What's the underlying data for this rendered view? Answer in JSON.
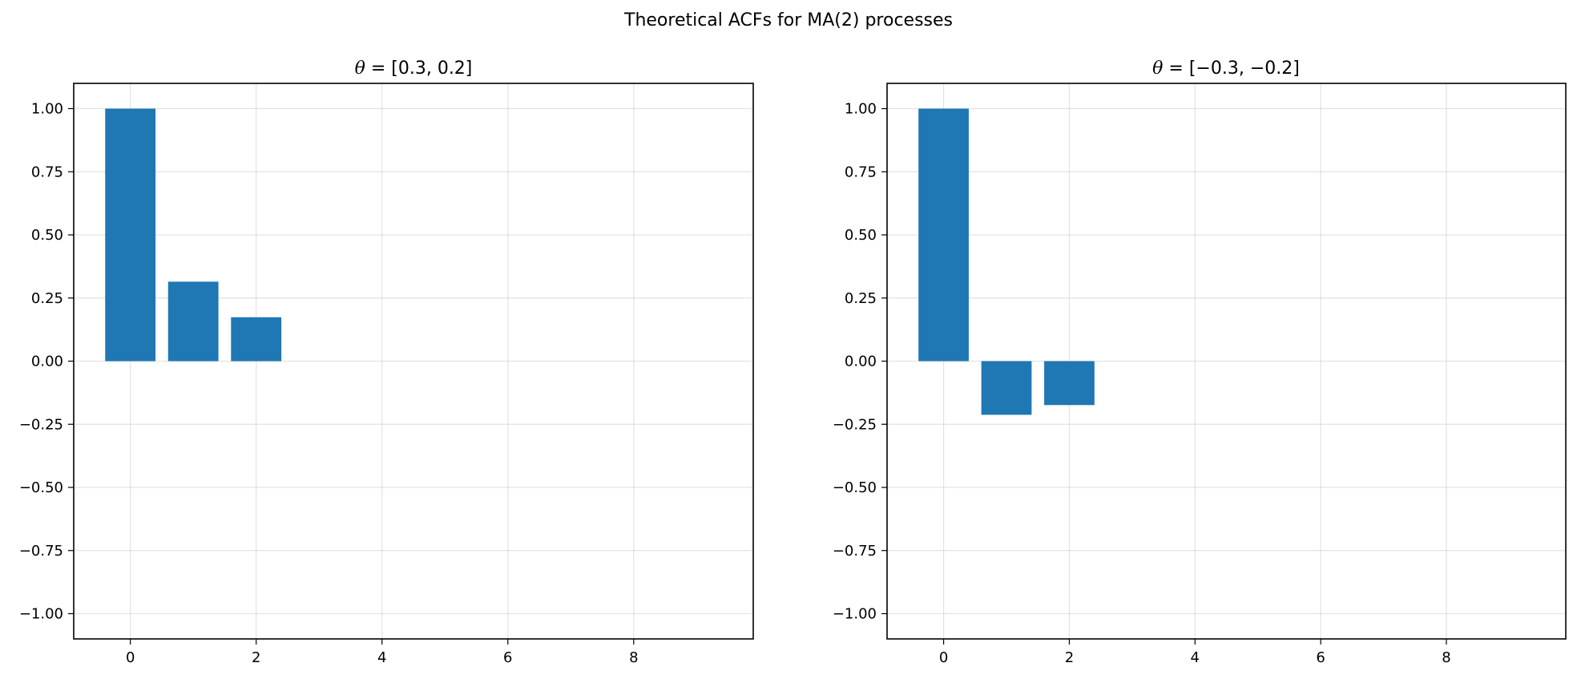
{
  "figure": {
    "suptitle": "Theoretical ACFs for MA(2) processes"
  },
  "chart_data": [
    {
      "type": "bar",
      "title_symbol": "θ",
      "title_rest": " = [0.3, 0.2]",
      "xlabel": "",
      "ylabel": "",
      "x": [
        0,
        1,
        2
      ],
      "values": [
        1.0,
        0.3147,
        0.1739
      ],
      "xlim": [
        -0.9,
        9.9
      ],
      "ylim": [
        -1.1,
        1.1
      ],
      "xticks": [
        "0",
        "2",
        "4",
        "6",
        "8"
      ],
      "yticks": [
        "−1.00",
        "−0.75",
        "−0.50",
        "−0.25",
        "0.00",
        "0.25",
        "0.50",
        "0.75",
        "1.00"
      ],
      "grid": true,
      "bar_color": "#1f77b4"
    },
    {
      "type": "bar",
      "title_symbol": "θ",
      "title_rest": " = [−0.3, −0.2]",
      "xlabel": "",
      "ylabel": "",
      "x": [
        0,
        1,
        2
      ],
      "values": [
        1.0,
        -0.2125,
        -0.1739
      ],
      "xlim": [
        -0.9,
        9.9
      ],
      "ylim": [
        -1.1,
        1.1
      ],
      "xticks": [
        "0",
        "2",
        "4",
        "6",
        "8"
      ],
      "yticks": [
        "−1.00",
        "−0.75",
        "−0.50",
        "−0.25",
        "0.00",
        "0.25",
        "0.50",
        "0.75",
        "1.00"
      ],
      "grid": true,
      "bar_color": "#1f77b4"
    }
  ]
}
